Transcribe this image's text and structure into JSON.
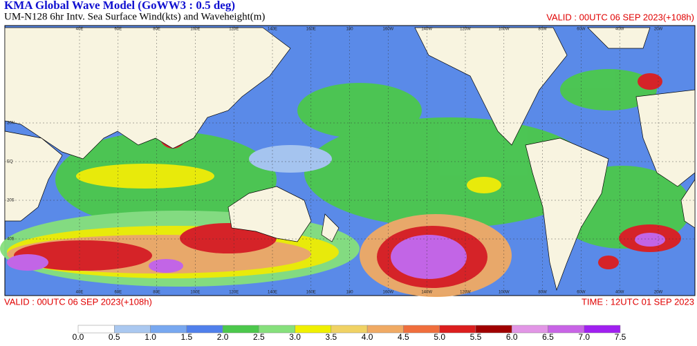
{
  "header": {
    "title": "KMA  Global Wave Model (GoWW3 : 0.5 deg)",
    "subtitle": "UM-N128  6hr Intv. Sea Surface Wind(kts) and Waveheight(m)",
    "valid_top": "VALID : 00UTC 06 SEP 2023(+108h)"
  },
  "footer": {
    "valid": "VALID : 00UTC 06 SEP 2023(+108h)",
    "time": "TIME : 12UTC 01 SEP 2023"
  },
  "map": {
    "lon_labels": [
      "40E",
      "60E",
      "80E",
      "100E",
      "120E",
      "140E",
      "160E",
      "180",
      "160W",
      "140W",
      "120W",
      "100W",
      "80W",
      "60W",
      "40W",
      "20W"
    ],
    "lat_labels": [
      "20N",
      "EQ",
      "20S",
      "40S"
    ]
  },
  "legend": {
    "ticks": [
      {
        "value": 0,
        "label": "0.0"
      },
      {
        "value": 0.5,
        "label": "0.5"
      },
      {
        "value": 1,
        "label": "1.0"
      },
      {
        "value": 1.5,
        "label": "1.5"
      },
      {
        "value": 2,
        "label": "2.0"
      },
      {
        "value": 2.5,
        "label": "2.5"
      },
      {
        "value": 3,
        "label": "3.0"
      },
      {
        "value": 3.5,
        "label": "3.5"
      },
      {
        "value": 4,
        "label": "4.0"
      },
      {
        "value": 4.5,
        "label": "4.5"
      },
      {
        "value": 5,
        "label": "5.0"
      },
      {
        "value": 5.5,
        "label": "5.5"
      },
      {
        "value": 6,
        "label": "6.0"
      },
      {
        "value": 6.5,
        "label": "6.5"
      },
      {
        "value": 7,
        "label": "7.0"
      },
      {
        "value": 7.5,
        "label": "7.5"
      }
    ],
    "colors": [
      "#ffffff",
      "#aac8f0",
      "#78a8f0",
      "#5080ec",
      "#4cc84c",
      "#86e07c",
      "#f0f000",
      "#f0d264",
      "#f0aa64",
      "#f06e3c",
      "#dc1e1e",
      "#a00000",
      "#e296e6",
      "#c864e6",
      "#a020f0"
    ]
  }
}
